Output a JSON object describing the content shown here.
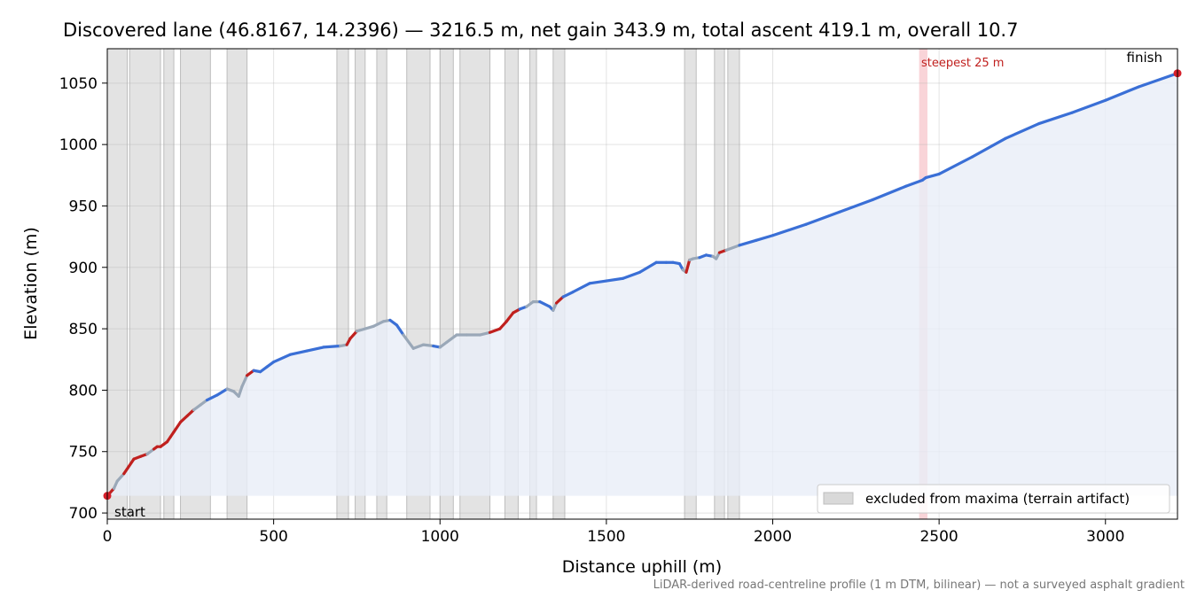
{
  "chart_data": {
    "type": "line",
    "title": "Discovered lane (46.8167, 14.2396) — 3216.5 m, net gain 343.9 m, total ascent 419.1 m, overall 10.7",
    "xlabel": "Distance uphill (m)",
    "ylabel": "Elevation (m)",
    "xlim": [
      0,
      3216.5
    ],
    "ylim": [
      695,
      1078
    ],
    "grid": true,
    "x_ticks": [
      0,
      500,
      1000,
      1500,
      2000,
      2500,
      3000
    ],
    "y_ticks": [
      700,
      750,
      800,
      850,
      900,
      950,
      1000,
      1050
    ],
    "baseline_elevation": 714,
    "colors": {
      "line_included": "#3a6fd6",
      "line_excluded": "#9aa8b8",
      "line_steep": "#c0201e",
      "line_transition": "#f0a020",
      "fill": "#e8eef8",
      "excluded_band": "#d9d9d9",
      "steepest_band": "#f5b8be",
      "steepest_text": "#c0201e",
      "endpoint_marker": "#d6202a"
    },
    "annotations": {
      "start": "start",
      "finish": "finish",
      "steepest": "steepest 25 m",
      "steepest_x": [
        2440,
        2465
      ]
    },
    "legend": {
      "position": "lower right",
      "entries": [
        "excluded from maxima (terrain artifact)"
      ]
    },
    "footer": "LiDAR-derived road-centreline profile (1 m DTM, bilinear) — not a surveyed asphalt gradient",
    "excluded_ranges": [
      [
        0,
        60
      ],
      [
        67,
        160
      ],
      [
        170,
        200
      ],
      [
        220,
        310
      ],
      [
        360,
        420
      ],
      [
        690,
        725
      ],
      [
        745,
        775
      ],
      [
        810,
        840
      ],
      [
        900,
        970
      ],
      [
        1000,
        1040
      ],
      [
        1060,
        1150
      ],
      [
        1195,
        1235
      ],
      [
        1270,
        1290
      ],
      [
        1340,
        1375
      ],
      [
        1735,
        1770
      ],
      [
        1825,
        1855
      ],
      [
        1865,
        1900
      ]
    ],
    "steep_ranges": [
      [
        0,
        18
      ],
      [
        60,
        120
      ],
      [
        140,
        175
      ],
      [
        185,
        255
      ],
      [
        420,
        440
      ],
      [
        725,
        745
      ],
      [
        1165,
        1235
      ],
      [
        1350,
        1362
      ],
      [
        1740,
        1752
      ],
      [
        1840,
        1855
      ],
      [
        3205,
        3216.5
      ]
    ],
    "series": [
      {
        "x": [
          0,
          20,
          30,
          50,
          80,
          100,
          120,
          140,
          150,
          160,
          170,
          180,
          190,
          200,
          220,
          240,
          260,
          280,
          300,
          330,
          360,
          380,
          395,
          405,
          420,
          440,
          460,
          480,
          500,
          550,
          600,
          650,
          700,
          720,
          730,
          750,
          800,
          830,
          850,
          870,
          890,
          920,
          950,
          980,
          1000,
          1020,
          1050,
          1080,
          1120,
          1150,
          1180,
          1200,
          1220,
          1240,
          1260,
          1280,
          1300,
          1330,
          1340,
          1350,
          1370,
          1400,
          1450,
          1500,
          1550,
          1600,
          1650,
          1680,
          1700,
          1720,
          1730,
          1740,
          1750,
          1760,
          1780,
          1800,
          1820,
          1830,
          1840,
          1860,
          1900,
          1950,
          2000,
          2100,
          2200,
          2300,
          2400,
          2450,
          2460,
          2500,
          2600,
          2700,
          2800,
          2900,
          3000,
          3100,
          3216.5
        ],
        "y": [
          714,
          720,
          726,
          732,
          744,
          746,
          748,
          752,
          754,
          754,
          756,
          758,
          762,
          766,
          774,
          779,
          784,
          788,
          792,
          796,
          801,
          799,
          795,
          803,
          812,
          816,
          815,
          819,
          823,
          829,
          832,
          835,
          836,
          837,
          842,
          848,
          852,
          856,
          857,
          853,
          845,
          834,
          837,
          836,
          835,
          839,
          845,
          845,
          845,
          847,
          850,
          856,
          863,
          866,
          868,
          872,
          872,
          868,
          865,
          871,
          876,
          880,
          887,
          889,
          891,
          896,
          904,
          904,
          904,
          903,
          898,
          896,
          906,
          907,
          908,
          910,
          909,
          907,
          912,
          914,
          918,
          922,
          926,
          935,
          945,
          955,
          966,
          971,
          973,
          976,
          990,
          1005,
          1017,
          1026,
          1036,
          1047,
          1058
        ]
      }
    ]
  }
}
